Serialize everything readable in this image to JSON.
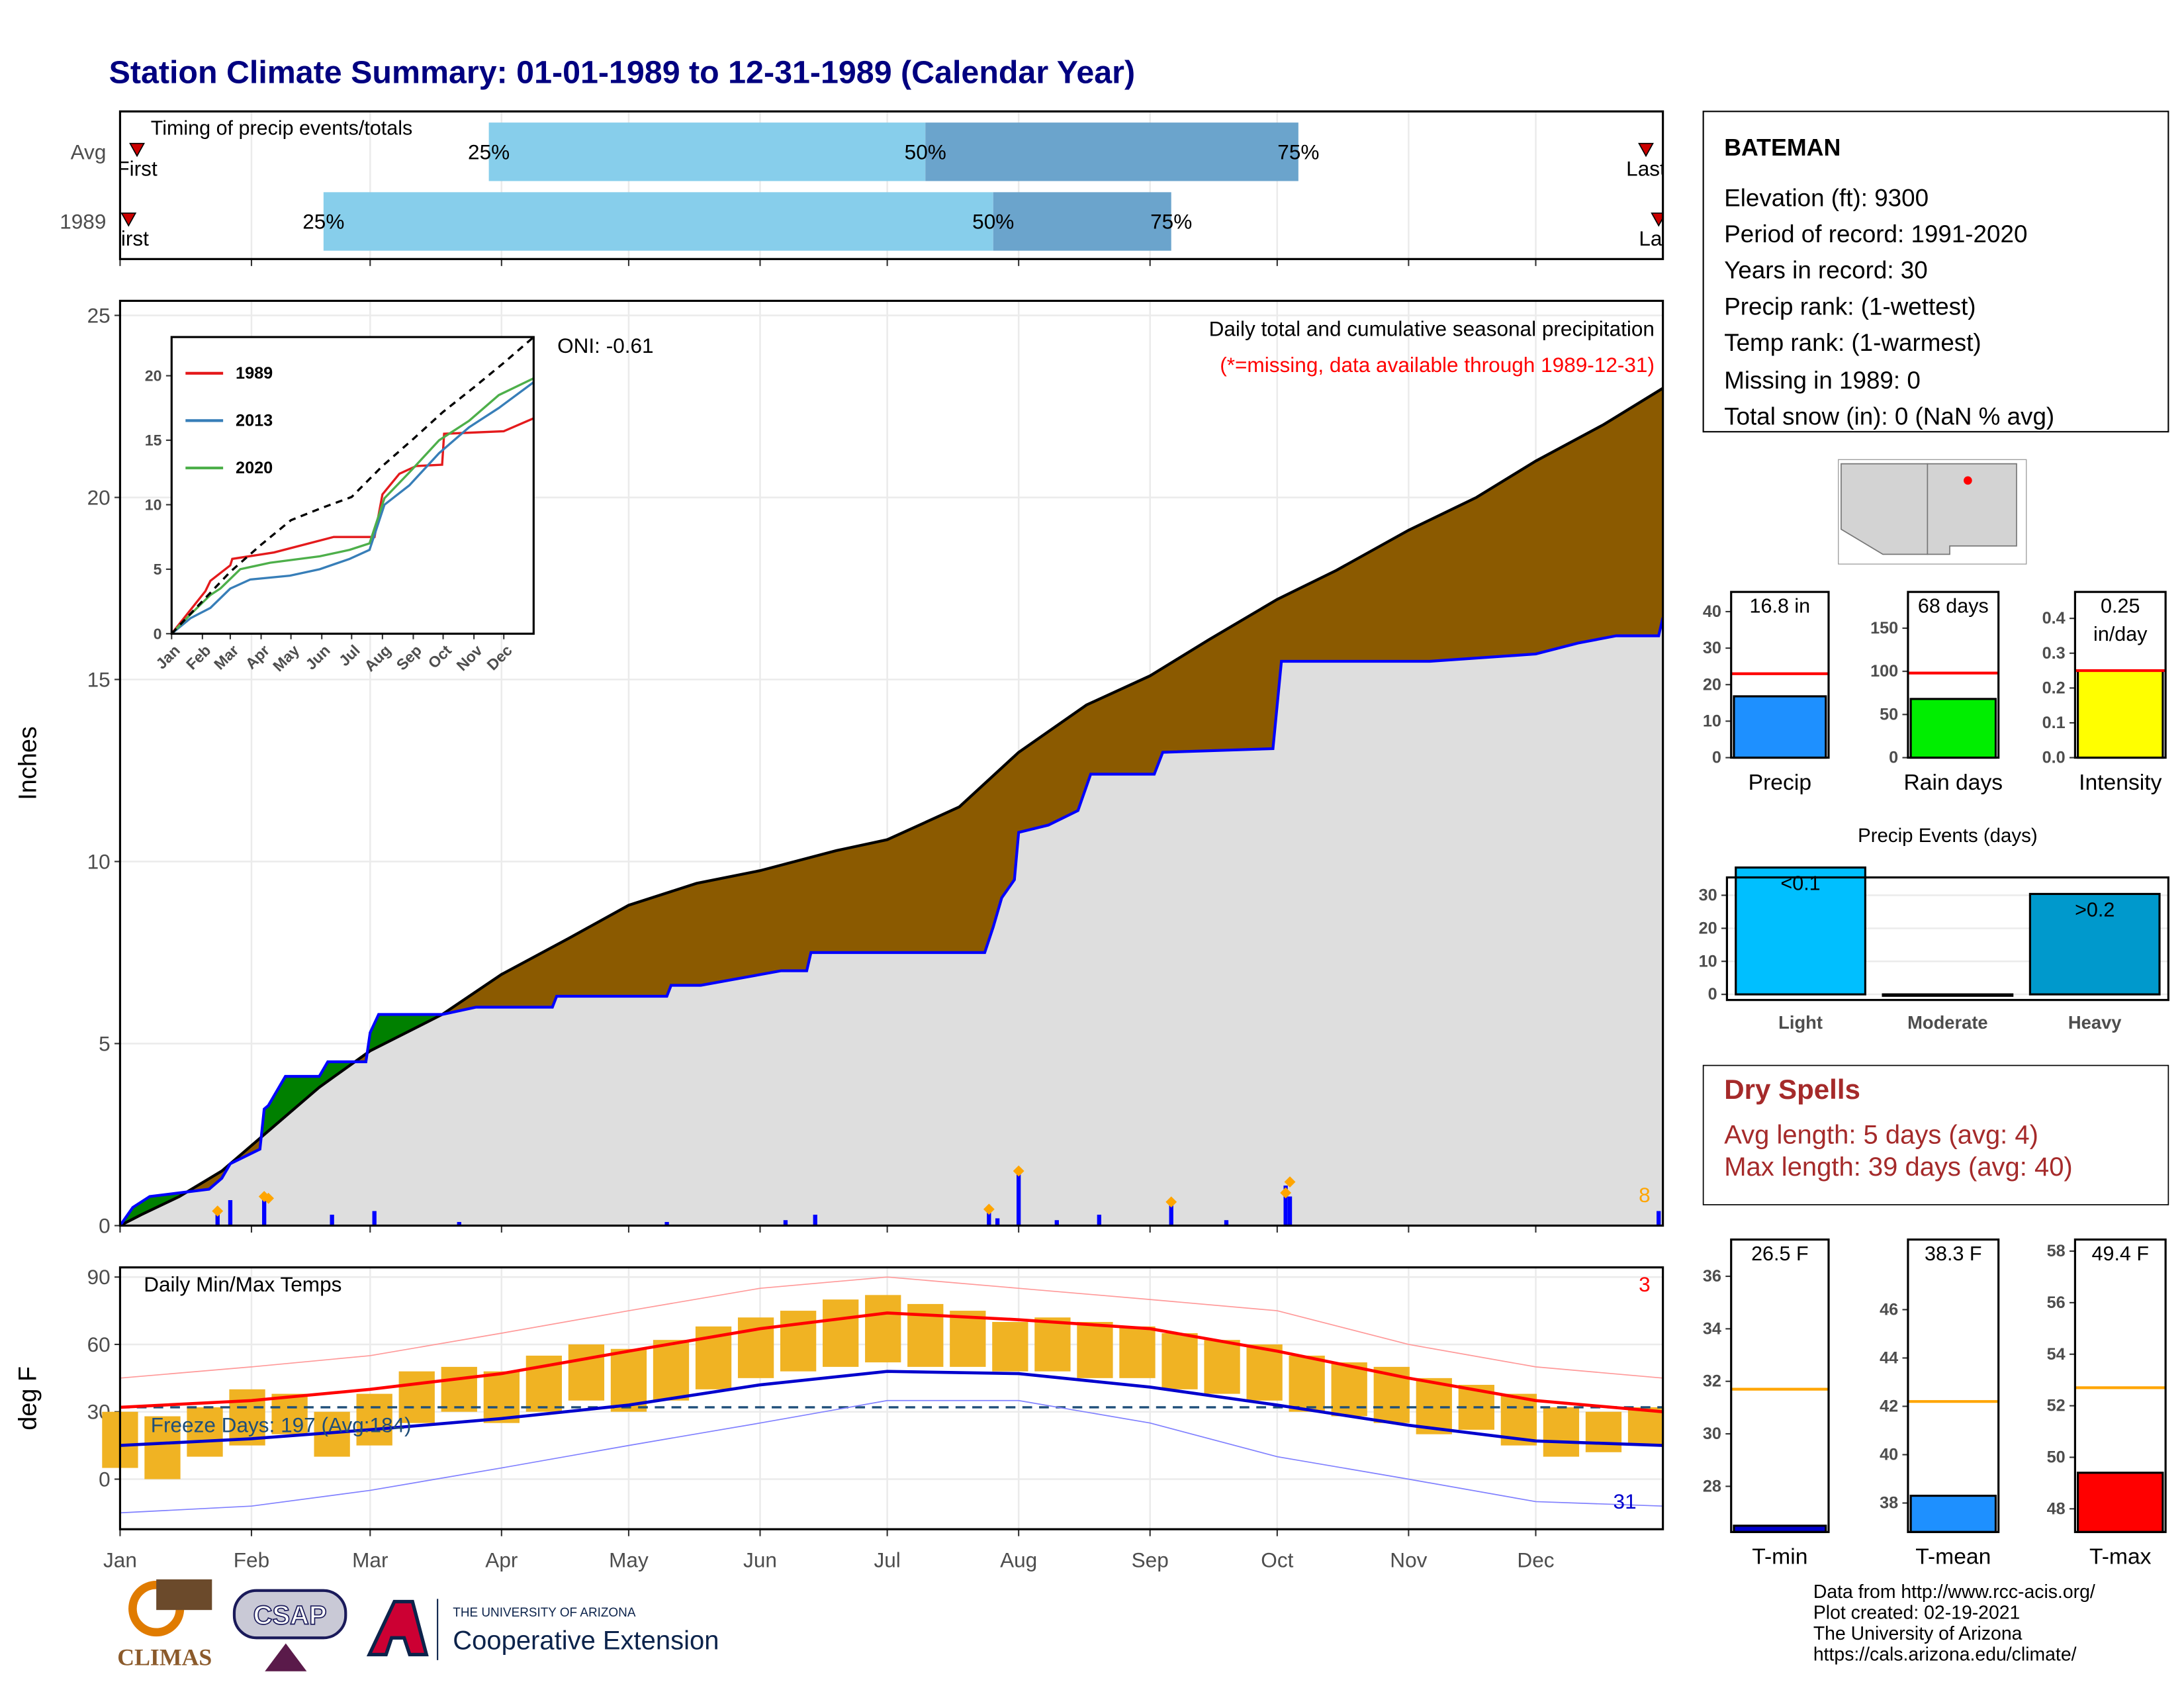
{
  "title": "Station Climate Summary: 01-01-1989 to 12-31-1989 (Calendar Year)",
  "chart_data": [
    {
      "type": "timing",
      "title": "Timing of precip events/totals",
      "labels": [
        "First",
        "25%",
        "50%",
        "75%",
        "Last"
      ],
      "xlim": [
        1,
        365
      ],
      "colors": [
        "#87ceeb",
        "#6ba4cc"
      ],
      "marker_color": "#cc0000",
      "rows": [
        {
          "name": "Avg",
          "values": [
            5,
            88,
            191,
            279,
            361
          ]
        },
        {
          "name": "1989",
          "values": [
            3,
            49,
            207,
            249,
            364
          ]
        }
      ]
    },
    {
      "type": "cumulative",
      "title": "Daily total and cumulative seasonal precipitation",
      "subtitle": "(*=missing, data available through 1989-12-31)",
      "annotation": "ONI: -0.61",
      "count": 8,
      "ylabel": "Inches",
      "xlim": [
        1,
        365
      ],
      "ylim": [
        0,
        25.4
      ],
      "yticks": [
        0,
        5,
        10,
        15,
        20,
        25
      ],
      "grid": true,
      "surplus_color": "#008000",
      "series": [
        {
          "color": "#000000",
          "fill": "#8b5a00",
          "x": [
            1,
            6,
            15,
            25,
            35,
            48,
            60,
            77,
            91,
            107,
            121,
            137,
            152,
            170,
            182,
            199,
            213,
            229,
            244,
            258,
            274,
            288,
            305,
            321,
            335,
            351,
            365
          ],
          "values": [
            0,
            0.3,
            0.8,
            1.5,
            2.5,
            3.8,
            4.8,
            5.8,
            6.9,
            7.9,
            8.8,
            9.4,
            9.75,
            10.3,
            10.6,
            11.5,
            13.0,
            14.3,
            15.1,
            16.1,
            17.2,
            18.0,
            19.1,
            20.0,
            21.0,
            22.0,
            23.0
          ]
        },
        {
          "color": "#0000ff",
          "fill": "#dedede",
          "x": [
            1,
            4,
            8,
            15,
            22,
            25,
            27,
            34,
            35,
            36,
            40,
            48,
            50,
            59,
            60,
            62,
            77,
            85,
            103,
            104,
            130,
            131,
            138,
            157,
            163,
            164,
            205,
            207,
            209,
            212,
            213,
            220,
            227,
            230,
            245,
            247,
            273,
            275,
            310,
            335,
            345,
            354,
            364,
            365
          ],
          "values": [
            0,
            0.5,
            0.8,
            0.9,
            1.0,
            1.3,
            1.7,
            2.1,
            3.2,
            3.3,
            4.1,
            4.1,
            4.5,
            4.5,
            5.3,
            5.8,
            5.8,
            6.0,
            6.0,
            6.3,
            6.3,
            6.6,
            6.6,
            7.0,
            7.0,
            7.5,
            7.5,
            8.2,
            9.0,
            9.5,
            10.8,
            11.0,
            11.4,
            12.4,
            12.4,
            13.0,
            13.1,
            15.5,
            15.5,
            15.7,
            16.0,
            16.2,
            16.2,
            16.7
          ]
        }
      ],
      "daily": {
        "color": "#0000ff",
        "x": [
          24,
          27,
          35,
          51,
          61,
          81,
          130,
          158,
          165,
          206,
          208,
          213,
          222,
          232,
          249,
          262,
          276,
          277,
          364
        ],
        "values": [
          0.35,
          0.7,
          0.8,
          0.3,
          0.4,
          0.1,
          0.1,
          0.15,
          0.3,
          0.35,
          0.2,
          1.4,
          0.15,
          0.3,
          0.6,
          0.15,
          1.1,
          0.8,
          0.4
        ]
      },
      "extremes": {
        "color": "#ffa500",
        "x": [
          24,
          35,
          36,
          206,
          213,
          249,
          276,
          277
        ],
        "values": [
          0.4,
          0.8,
          0.75,
          0.45,
          1.5,
          0.65,
          0.9,
          1.2
        ]
      }
    },
    {
      "type": "line",
      "xlim": [
        1,
        365
      ],
      "ylim": [
        0,
        23
      ],
      "yticks": [
        0,
        5,
        10,
        15,
        20
      ],
      "xticks": [
        {
          "value": 1,
          "label": "Jan"
        },
        {
          "value": 32,
          "label": "Feb"
        },
        {
          "value": 60,
          "label": "Mar"
        },
        {
          "value": 91,
          "label": "Apr"
        },
        {
          "value": 121,
          "label": "May"
        },
        {
          "value": 152,
          "label": "Jun"
        },
        {
          "value": 182,
          "label": "Jul"
        },
        {
          "value": 213,
          "label": "Aug"
        },
        {
          "value": 244,
          "label": "Sep"
        },
        {
          "value": 274,
          "label": "Oct"
        },
        {
          "value": 305,
          "label": "Nov"
        },
        {
          "value": 335,
          "label": "Dec"
        }
      ],
      "series": [
        {
          "name": "1989",
          "color": "#e41a1c",
          "x": [
            1,
            35,
            40,
            60,
            62,
            104,
            164,
            205,
            213,
            230,
            247,
            273,
            275,
            335,
            365
          ],
          "values": [
            0,
            3.3,
            4.1,
            5.3,
            5.8,
            6.3,
            7.5,
            7.5,
            10.8,
            12.4,
            13.0,
            13.1,
            15.5,
            15.7,
            16.7
          ]
        },
        {
          "name": "2013",
          "color": "#377eb8",
          "x": [
            1,
            20,
            40,
            60,
            80,
            120,
            150,
            180,
            200,
            215,
            240,
            270,
            300,
            330,
            365
          ],
          "values": [
            0,
            1.2,
            2.0,
            3.5,
            4.2,
            4.5,
            5.0,
            5.8,
            6.5,
            10.0,
            11.5,
            14.0,
            16.0,
            17.5,
            19.5
          ]
        },
        {
          "name": "2020",
          "color": "#4daf4a",
          "x": [
            1,
            20,
            40,
            50,
            70,
            100,
            150,
            180,
            200,
            215,
            240,
            270,
            300,
            330,
            365
          ],
          "values": [
            0,
            1.5,
            3.0,
            3.5,
            5.0,
            5.5,
            6.0,
            6.5,
            7.0,
            10.5,
            12.5,
            15.0,
            16.5,
            18.5,
            19.8
          ]
        },
        {
          "color": "#000000",
          "dash": true,
          "x": [
            1,
            60,
            91,
            121,
            152,
            182,
            213,
            244,
            274,
            305,
            335,
            365
          ],
          "values": [
            0,
            4.8,
            6.9,
            8.8,
            9.75,
            10.6,
            13.0,
            15.1,
            17.2,
            19.1,
            21.0,
            23.0
          ]
        }
      ]
    },
    {
      "type": "temps",
      "title": "Daily Min/Max Temps",
      "annotation": "Freeze Days: 197 (Avg:184)",
      "ylabel": "deg F",
      "record_highs": 3,
      "record_lows": 31,
      "freeze": 32,
      "freeze_color": "#1f4e79",
      "xlim": [
        1,
        365
      ],
      "ylim": [
        -22.3,
        94.3
      ],
      "yticks": [
        0,
        30,
        60,
        90
      ],
      "grid": true,
      "xticks": [
        {
          "value": 1,
          "label": "Jan"
        },
        {
          "value": 32,
          "label": "Feb"
        },
        {
          "value": 60,
          "label": "Mar"
        },
        {
          "value": 91,
          "label": "Apr"
        },
        {
          "value": 121,
          "label": "May"
        },
        {
          "value": 152,
          "label": "Jun"
        },
        {
          "value": 182,
          "label": "Jul"
        },
        {
          "value": 213,
          "label": "Aug"
        },
        {
          "value": 244,
          "label": "Sep"
        },
        {
          "value": 274,
          "label": "Oct"
        },
        {
          "value": 305,
          "label": "Nov"
        },
        {
          "value": 335,
          "label": "Dec"
        }
      ],
      "daily": {
        "color": "#f0b323",
        "x": [
          1,
          11,
          21,
          31,
          41,
          51,
          61,
          71,
          81,
          91,
          101,
          111,
          121,
          131,
          141,
          151,
          161,
          171,
          181,
          191,
          201,
          211,
          221,
          231,
          241,
          251,
          261,
          271,
          281,
          291,
          301,
          311,
          321,
          331,
          341,
          351,
          361
        ],
        "min": [
          5,
          0,
          10,
          15,
          20,
          10,
          15,
          25,
          30,
          25,
          30,
          35,
          30,
          35,
          40,
          45,
          48,
          50,
          52,
          50,
          50,
          48,
          48,
          45,
          45,
          40,
          38,
          35,
          30,
          28,
          25,
          20,
          22,
          15,
          10,
          12,
          15
        ],
        "max": [
          30,
          28,
          32,
          40,
          38,
          30,
          38,
          48,
          50,
          48,
          55,
          60,
          58,
          62,
          68,
          72,
          75,
          80,
          82,
          78,
          75,
          70,
          72,
          70,
          68,
          65,
          62,
          60,
          55,
          52,
          50,
          45,
          42,
          38,
          32,
          30,
          32
        ]
      },
      "series": [
        {
          "color": "#ff9999",
          "width": 0.8,
          "x": [
            1,
            32,
            60,
            91,
            121,
            152,
            182,
            213,
            244,
            274,
            305,
            335,
            365
          ],
          "values": [
            45,
            50,
            55,
            65,
            75,
            85,
            90,
            85,
            80,
            75,
            60,
            50,
            45
          ]
        },
        {
          "color": "#8080ff",
          "width": 0.8,
          "x": [
            1,
            32,
            60,
            91,
            121,
            152,
            182,
            213,
            244,
            274,
            305,
            335,
            365
          ],
          "values": [
            -15,
            -12,
            -5,
            5,
            15,
            25,
            35,
            35,
            25,
            10,
            0,
            -10,
            -12
          ]
        },
        {
          "color": "#ff0000",
          "width": 2.2,
          "x": [
            1,
            32,
            60,
            91,
            121,
            152,
            182,
            213,
            244,
            274,
            305,
            335,
            365
          ],
          "values": [
            32,
            35,
            40,
            47,
            57,
            67,
            74,
            71,
            67,
            57,
            45,
            35,
            30
          ]
        },
        {
          "color": "#0000cd",
          "width": 2.2,
          "x": [
            1,
            32,
            60,
            91,
            121,
            152,
            182,
            213,
            244,
            274,
            305,
            335,
            365
          ],
          "values": [
            15,
            18,
            22,
            27,
            33,
            42,
            48,
            47,
            41,
            33,
            24,
            17,
            15
          ]
        }
      ]
    },
    {
      "type": "bar",
      "categories": [
        "Precip"
      ],
      "values": [
        16.8
      ],
      "value_labels": [
        "16.8 in"
      ],
      "avg": 23,
      "avg_color": "#ff0000",
      "colors": [
        "#1e90ff"
      ],
      "ylim": [
        0,
        45.4
      ],
      "yticks": [
        0,
        10,
        20,
        30,
        40
      ]
    },
    {
      "type": "bar",
      "categories": [
        "Rain days"
      ],
      "values": [
        68
      ],
      "value_labels": [
        "68 days"
      ],
      "avg": 98,
      "avg_color": "#ff0000",
      "colors": [
        "#00ee00"
      ],
      "ylim": [
        0,
        192
      ],
      "yticks": [
        0,
        50,
        100,
        150
      ]
    },
    {
      "type": "bar",
      "categories": [
        "Intensity"
      ],
      "values": [
        0.25
      ],
      "value_labels": [
        "0.25 in/day"
      ],
      "avg": 0.25,
      "avg_color": "#ff0000",
      "colors": [
        "#ffff00"
      ],
      "ylim": [
        0,
        0.476
      ],
      "yticks": [
        {
          "value": 0,
          "label": "0.0"
        },
        {
          "value": 0.1,
          "label": "0.1"
        },
        {
          "value": 0.2,
          "label": "0.2"
        },
        {
          "value": 0.3,
          "label": "0.3"
        },
        {
          "value": 0.4,
          "label": "0.4"
        }
      ]
    },
    {
      "type": "bar",
      "title": "Precip Events (days)",
      "categories": [
        "Light",
        "Moderate",
        "Heavy"
      ],
      "values": [
        38.4,
        0,
        30.4
      ],
      "value_labels": [
        "<0.1",
        null,
        ">0.2"
      ],
      "colors": [
        "#00bfff",
        "#4a4a8a",
        "#0099cc"
      ],
      "grid": true,
      "ylim": [
        -1.7,
        35.4
      ],
      "yticks": [
        0,
        10,
        20,
        30
      ]
    },
    {
      "type": "bar",
      "categories": [
        "T-min"
      ],
      "values": [
        26.5
      ],
      "value_labels": [
        "26.5 F"
      ],
      "avg": 31.7,
      "avg_color": "#ffa500",
      "colors": [
        "#0000cd"
      ],
      "ylim": [
        26.26,
        37.4
      ],
      "yticks": [
        28,
        30,
        32,
        34,
        36
      ]
    },
    {
      "type": "bar",
      "categories": [
        "T-mean"
      ],
      "values": [
        38.3
      ],
      "value_labels": [
        "38.3 F"
      ],
      "avg": 42.2,
      "avg_color": "#ffa500",
      "colors": [
        "#1e90ff"
      ],
      "ylim": [
        36.8,
        48.9
      ],
      "yticks": [
        38,
        40,
        42,
        44,
        46
      ]
    },
    {
      "type": "bar",
      "categories": [
        "T-max"
      ],
      "values": [
        49.4
      ],
      "value_labels": [
        "49.4 F"
      ],
      "avg": 52.7,
      "avg_color": "#ffa500",
      "colors": [
        "#ff0000"
      ],
      "ylim": [
        47.1,
        58.45
      ],
      "yticks": [
        48,
        50,
        52,
        54,
        56,
        58
      ]
    }
  ],
  "station": {
    "name": "BATEMAN",
    "lines": [
      "Elevation (ft): 9300",
      "Period of record: 1991-2020",
      "Years in record: 30",
      "Precip rank:  (1-wettest)",
      "Temp rank:  (1-warmest)",
      "Missing in 1989: 0",
      "Total snow (in): 0 (NaN % avg)"
    ]
  },
  "dry_spells": {
    "title": "Dry Spells",
    "lines": [
      "Avg length: 5 days (avg: 4)",
      "Max length: 39 days (avg: 40)"
    ]
  },
  "footer": {
    "logos": [
      "CLIMAS",
      "CSAP",
      "THE UNIVERSITY OF ARIZONA",
      "Cooperative Extension"
    ],
    "credits": [
      "Data from http://www.rcc-acis.org/",
      "Plot created: 02-19-2021",
      "The University of Arizona",
      "https://cals.arizona.edu/climate/"
    ]
  }
}
